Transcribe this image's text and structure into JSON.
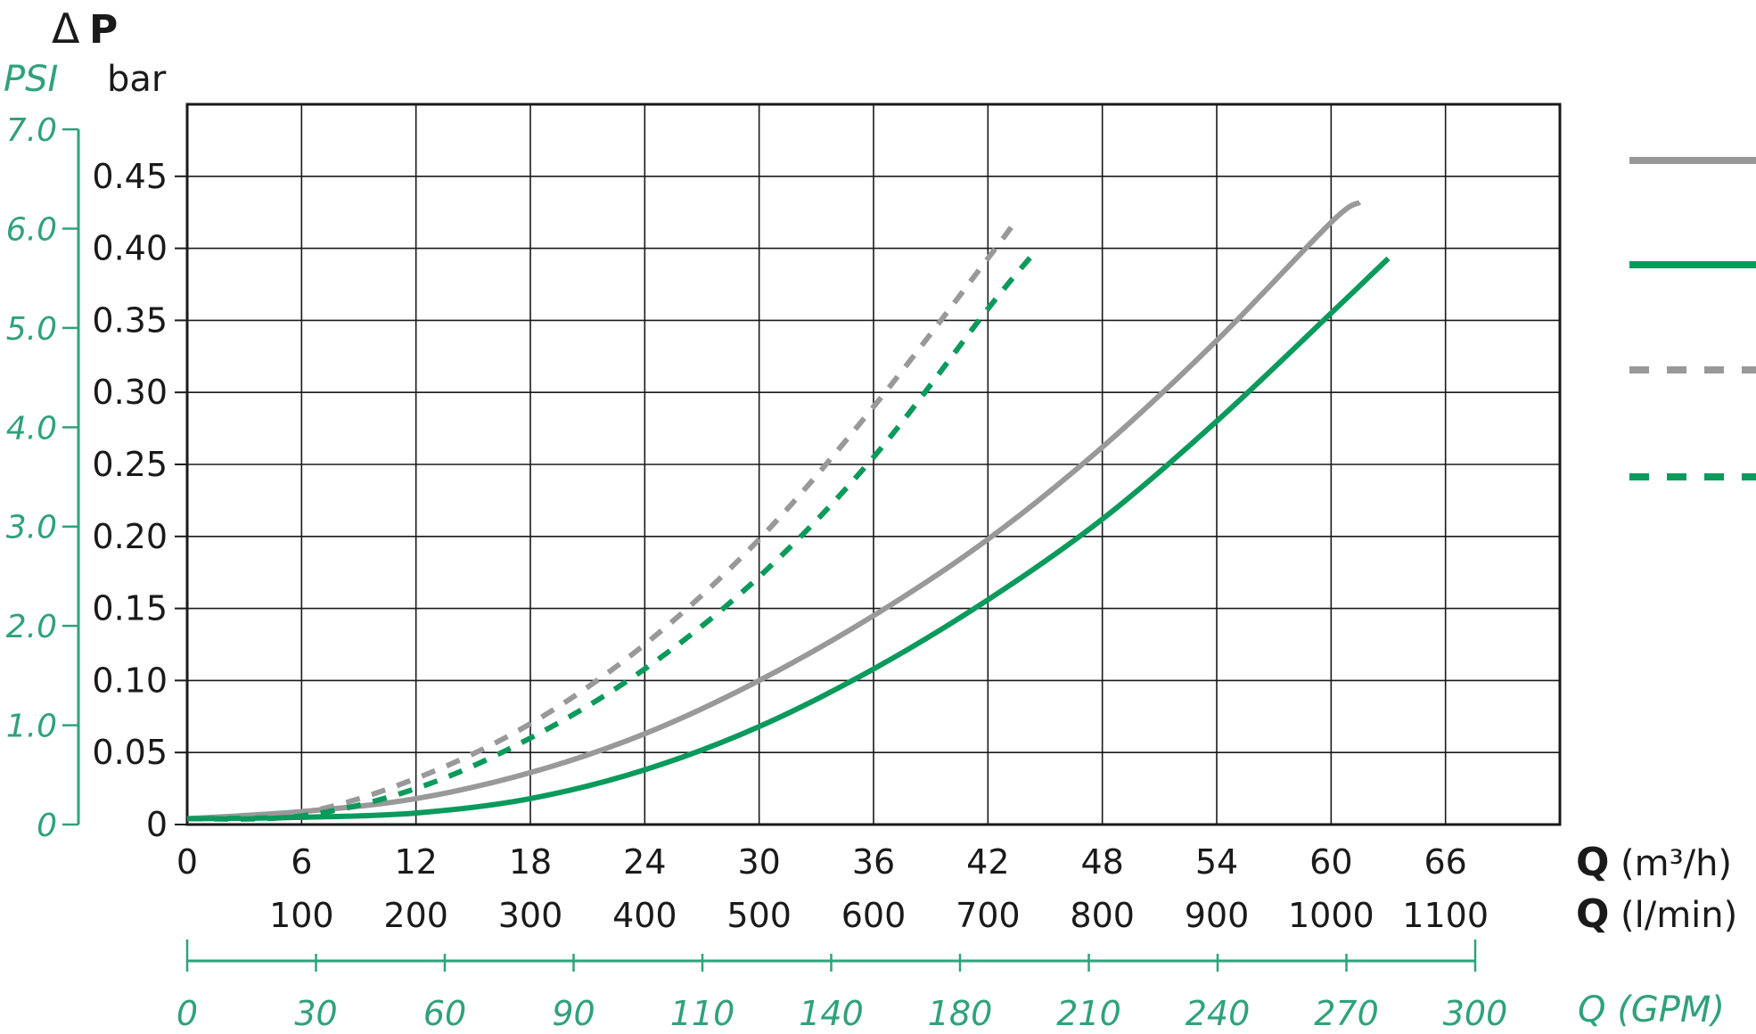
{
  "colors": {
    "ink": "#1a1a1a",
    "grid": "#1a1a1a",
    "gray": "#999999",
    "green": "#0a9a5c",
    "scale_green": "#2fa27a"
  },
  "chart_data": {
    "type": "line",
    "title": {
      "delta": "Δ",
      "p": "P"
    },
    "left_units": {
      "psi": "PSI",
      "bar": "bar"
    },
    "xlim": [
      0,
      72
    ],
    "ylim": [
      0,
      0.5
    ],
    "grid": true,
    "x_ticks_m3h": [
      "0",
      "6",
      "12",
      "18",
      "24",
      "30",
      "36",
      "42",
      "48",
      "54",
      "60",
      "66"
    ],
    "x_ticks_lmin": [
      "100",
      "200",
      "300",
      "400",
      "500",
      "600",
      "700",
      "800",
      "900",
      "1000",
      "1100"
    ],
    "x_label_m3h": {
      "q": "Q",
      "unit": "(m³/h)"
    },
    "x_label_lmin": {
      "q": "Q",
      "unit": "(l/min)"
    },
    "y_ticks_bar": [
      "0",
      "0.05",
      "0.10",
      "0.15",
      "0.20",
      "0.25",
      "0.30",
      "0.35",
      "0.40",
      "0.45"
    ],
    "y_ticks_psi": [
      "0",
      "1.0",
      "2.0",
      "3.0",
      "4.0",
      "5.0",
      "6.0",
      "7.0"
    ],
    "gpm_ticks": [
      "0",
      "30",
      "60",
      "90",
      "110",
      "140",
      "180",
      "210",
      "240",
      "270",
      "300"
    ],
    "gpm_label": "Q (GPM)",
    "legend_position": "right",
    "series": [
      {
        "style": "gray-solid",
        "x": [
          0,
          6,
          12,
          18,
          24,
          30,
          36,
          42,
          48,
          54,
          60,
          61.5
        ],
        "y": [
          0.004,
          0.009,
          0.018,
          0.036,
          0.063,
          0.1,
          0.145,
          0.198,
          0.262,
          0.336,
          0.418,
          0.432
        ]
      },
      {
        "style": "green-solid",
        "x": [
          0,
          6,
          12,
          18,
          24,
          30,
          36,
          42,
          48,
          54,
          60,
          63
        ],
        "y": [
          0.004,
          0.005,
          0.008,
          0.018,
          0.038,
          0.068,
          0.108,
          0.156,
          0.212,
          0.28,
          0.355,
          0.393
        ]
      },
      {
        "style": "gray-dashed",
        "x": [
          0,
          6,
          12,
          18,
          24,
          30,
          36,
          42,
          43.5
        ],
        "y": [
          0.004,
          0.008,
          0.032,
          0.07,
          0.125,
          0.198,
          0.29,
          0.393,
          0.42
        ]
      },
      {
        "style": "green-dashed",
        "x": [
          0,
          6,
          12,
          18,
          24,
          30,
          36,
          42,
          44.5
        ],
        "y": [
          0.004,
          0.006,
          0.025,
          0.06,
          0.108,
          0.172,
          0.255,
          0.358,
          0.398
        ]
      }
    ]
  }
}
